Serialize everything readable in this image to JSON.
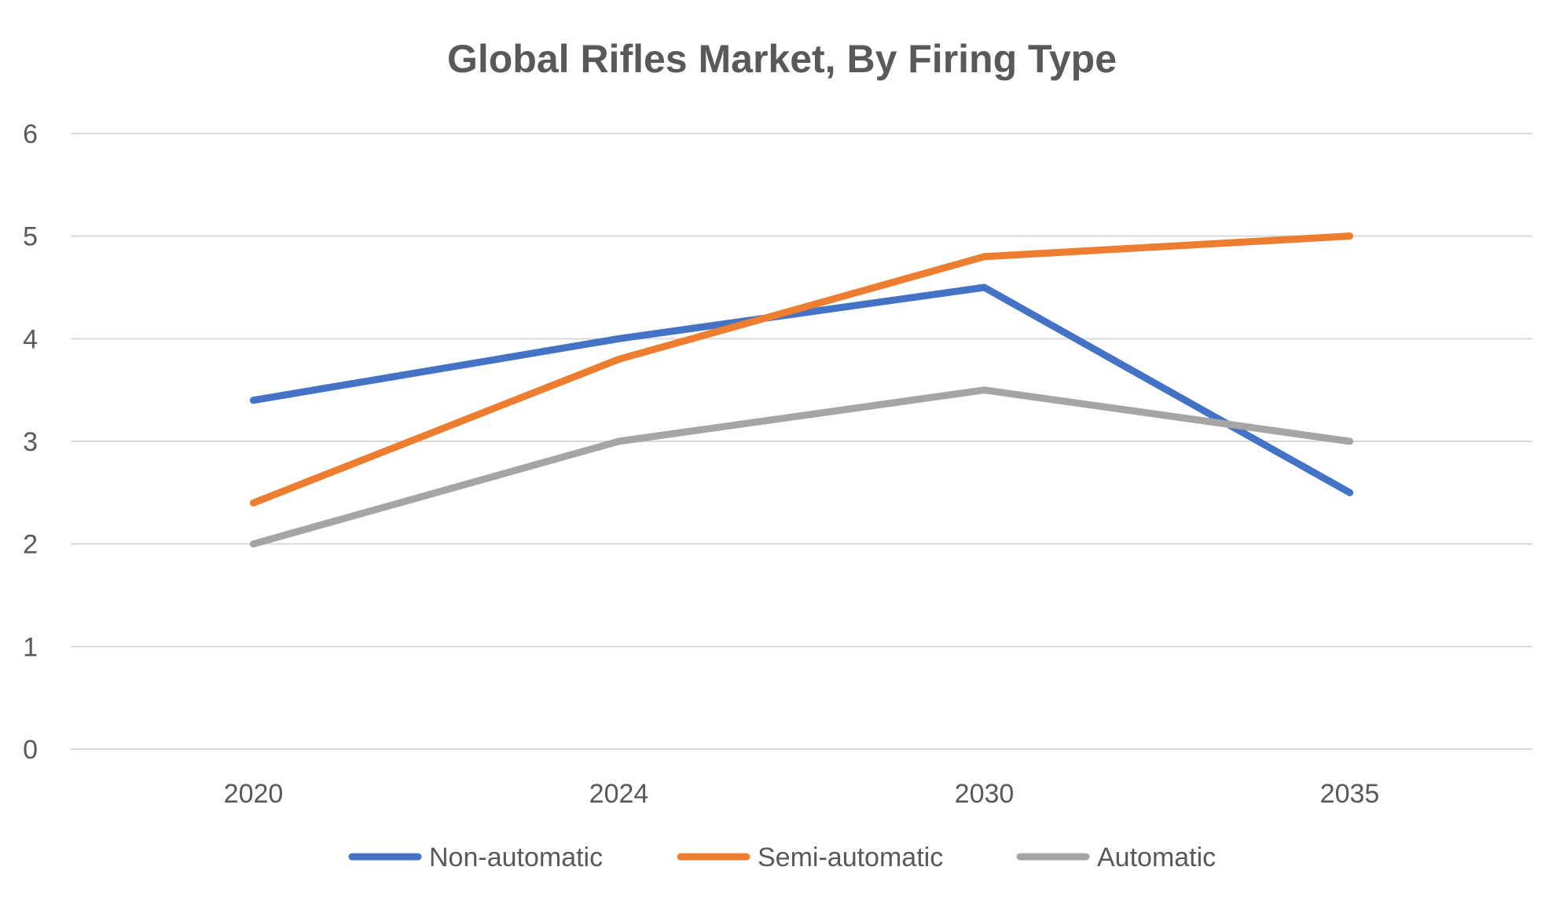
{
  "chart_data": {
    "type": "line",
    "title": "Global Rifles Market, By Firing Type",
    "xlabel": "",
    "ylabel": "",
    "categories": [
      "2020",
      "2024",
      "2030",
      "2035"
    ],
    "ylim": [
      0,
      6
    ],
    "yticks": [
      "0",
      "1",
      "2",
      "3",
      "4",
      "5",
      "6"
    ],
    "grid": true,
    "legend_position": "bottom",
    "series": [
      {
        "name": "Non-automatic",
        "color": "#4472c4",
        "values": [
          3.4,
          4.0,
          4.5,
          2.5
        ]
      },
      {
        "name": "Semi-automatic",
        "color": "#ed7d31",
        "values": [
          2.4,
          3.8,
          4.8,
          5.0
        ]
      },
      {
        "name": "Automatic",
        "color": "#a5a5a5",
        "values": [
          2.0,
          3.0,
          3.5,
          3.0
        ]
      }
    ]
  }
}
